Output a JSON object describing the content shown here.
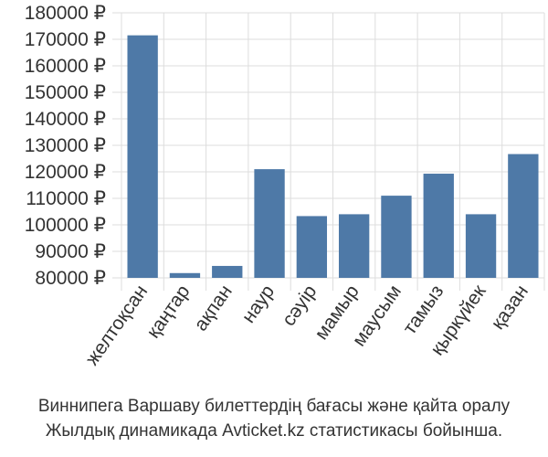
{
  "chart_data": {
    "type": "bar",
    "categories": [
      "желтоқсан",
      "қаңтар",
      "ақпан",
      "наур",
      "сәуір",
      "мамыр",
      "маусым",
      "тамыз",
      "қыркүйек",
      "қазан"
    ],
    "values": [
      171500,
      81800,
      84500,
      121000,
      103300,
      104000,
      111000,
      119300,
      104000,
      126700
    ],
    "y_ticks": [
      "80000 ₽",
      "90000 ₽",
      "100000 ₽",
      "110000 ₽",
      "120000 ₽",
      "130000 ₽",
      "140000 ₽",
      "150000 ₽",
      "160000 ₽",
      "170000 ₽",
      "180000 ₽"
    ],
    "ylim": [
      80000,
      180000
    ],
    "ytick_step": 10000,
    "grid": true,
    "bar_color": "#4e79a7",
    "grid_color": "#dddddd"
  },
  "caption": {
    "line1": "Виннипега Варшаву билеттердің бағасы және қайта оралу",
    "line2": "Жылдық динамикада Avticket.kz статистикасы бойынша."
  }
}
